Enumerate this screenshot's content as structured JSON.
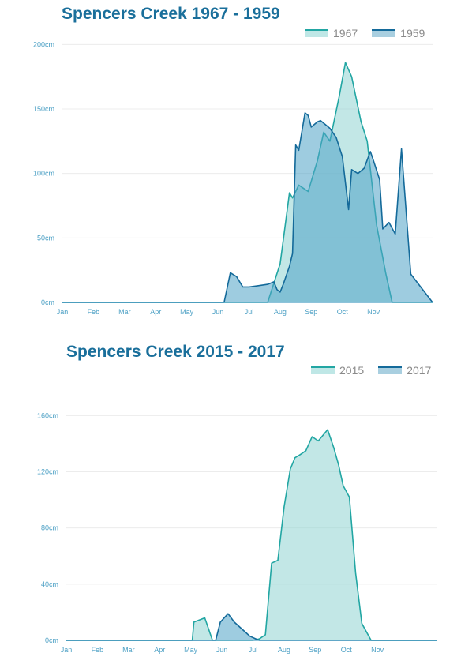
{
  "colors": {
    "s2015_1967_fill": "#8fd3d2",
    "s2015_1967_line": "#22a6a3",
    "s2017_1959_fill": "#4fa3c6",
    "s2017_1959_line": "#146a9a",
    "title": "#1a6f9b",
    "tick": "#4a9fc4",
    "axis": "#4a9fc4",
    "grid": "#ececec"
  },
  "chart_data": [
    {
      "type": "area",
      "title": "Spencers Creek 1967 - 1959",
      "ylim": [
        0,
        210
      ],
      "yticks": [
        0,
        50,
        100,
        150,
        200
      ],
      "ytick_labels": [
        "0cm",
        "50cm",
        "100cm",
        "150cm",
        "200cm"
      ],
      "xlim": [
        0,
        11.9
      ],
      "xtick_labels": [
        "Jan",
        "Feb",
        "Mar",
        "Apr",
        "May",
        "Jun",
        "Jul",
        "Aug",
        "Sep",
        "Oct",
        "Nov"
      ],
      "legend_position": "top-right",
      "series": [
        {
          "name": "1967",
          "x": [
            0,
            5.6,
            5.9,
            6.3,
            6.6,
            7.0,
            7.3,
            7.4,
            7.6,
            7.9,
            8.2,
            8.4,
            8.6,
            8.9,
            9.1,
            9.3,
            9.6,
            9.8,
            10.1,
            10.4,
            10.6,
            10.9,
            11.9
          ],
          "values": [
            0,
            0,
            0,
            0,
            0,
            30,
            85,
            81,
            91,
            86,
            110,
            132,
            125,
            160,
            186,
            175,
            140,
            125,
            60,
            22,
            0,
            0,
            0
          ]
        },
        {
          "name": "1959",
          "x": [
            0,
            5.2,
            5.4,
            5.6,
            5.8,
            6.0,
            6.3,
            6.6,
            6.8,
            6.9,
            7.0,
            7.1,
            7.3,
            7.4,
            7.5,
            7.6,
            7.8,
            7.9,
            8.0,
            8.2,
            8.3,
            8.4,
            8.6,
            8.8,
            9.0,
            9.2,
            9.3,
            9.5,
            9.7,
            9.9,
            10.0,
            10.2,
            10.3,
            10.5,
            10.7,
            10.9,
            11.2,
            11.9
          ],
          "values": [
            0,
            0,
            23,
            20,
            12,
            12,
            13,
            14,
            16,
            10,
            8,
            14,
            28,
            38,
            122,
            118,
            147,
            145,
            136,
            140,
            141,
            139,
            135,
            128,
            113,
            72,
            103,
            100,
            104,
            117,
            110,
            95,
            57,
            62,
            53,
            119,
            22,
            0
          ]
        }
      ]
    },
    {
      "type": "area",
      "title": "Spencers Creek 2015 - 2017",
      "ylim": [
        0,
        190
      ],
      "yticks": [
        0,
        40,
        80,
        120,
        160
      ],
      "ytick_labels": [
        "0cm",
        "40cm",
        "80cm",
        "120cm",
        "160cm"
      ],
      "xlim": [
        0,
        11.9
      ],
      "xtick_labels": [
        "Jan",
        "Feb",
        "Mar",
        "Apr",
        "May",
        "Jun",
        "Jul",
        "Aug",
        "Sep",
        "Oct",
        "Nov"
      ],
      "legend_position": "top-right",
      "series": [
        {
          "name": "2015",
          "x": [
            0,
            3.8,
            4.05,
            4.1,
            4.45,
            4.7,
            4.9,
            5.0,
            5.1,
            5.2,
            5.4,
            5.65,
            5.8,
            5.9,
            6.0,
            6.2,
            6.4,
            6.6,
            6.8,
            7.0,
            7.2,
            7.35,
            7.5,
            7.7,
            7.9,
            8.1,
            8.4,
            8.6,
            8.75,
            8.9,
            9.1,
            9.3,
            9.5,
            9.8,
            10.0,
            10.3,
            10.7,
            11.9
          ],
          "values": [
            0,
            0,
            0,
            13,
            16,
            0,
            0,
            0,
            0,
            0,
            0,
            0,
            0,
            0,
            0,
            1,
            4,
            55,
            57,
            95,
            122,
            130,
            132,
            135,
            145,
            142,
            150,
            137,
            125,
            110,
            102,
            48,
            12,
            0,
            0,
            0,
            0,
            0
          ]
        },
        {
          "name": "2017",
          "x": [
            0,
            4.6,
            4.8,
            4.95,
            5.2,
            5.4,
            5.6,
            5.8,
            5.9,
            6.2,
            11.9
          ],
          "values": [
            0,
            0,
            0,
            13,
            19,
            13,
            9,
            5,
            3,
            0,
            0
          ]
        }
      ]
    }
  ]
}
